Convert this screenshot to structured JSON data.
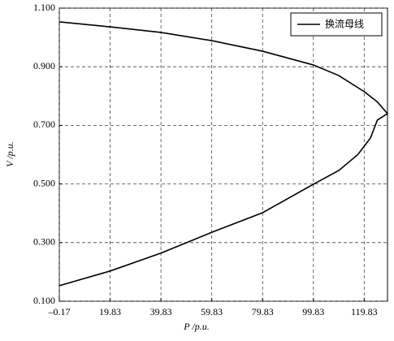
{
  "chart_data": {
    "type": "line",
    "x_label": "P /p.u.",
    "y_label": "V /p.u.",
    "x": [
      -0.17,
      19.83,
      39.83,
      59.83,
      79.83,
      99.83,
      109.83,
      119.83,
      125,
      129,
      125,
      122.3,
      117.3,
      109.83,
      99.83,
      79.83,
      59.83,
      39.83,
      19.83,
      -0.17
    ],
    "series": [
      {
        "name": "换流母线",
        "color": "#000000",
        "values": [
          1.053,
          1.036,
          1.017,
          0.989,
          0.953,
          0.906,
          0.87,
          0.815,
          0.78,
          0.74,
          0.718,
          0.657,
          0.6,
          0.546,
          0.499,
          0.402,
          0.335,
          0.264,
          0.203,
          0.153
        ]
      }
    ],
    "xlim": [
      -0.17,
      129
    ],
    "xticks": [
      {
        "value": -0.17,
        "label": "–0.17"
      },
      19.83,
      39.83,
      59.83,
      79.83,
      99.83,
      119.83
    ],
    "ylim": [
      0.1,
      1.1
    ],
    "yticks": [
      {
        "value": 0.1,
        "label": "0.100"
      },
      {
        "value": 0.3,
        "label": "0.300"
      },
      {
        "value": 0.5,
        "label": "0.500"
      },
      {
        "value": 0.7,
        "label": "0.700"
      },
      {
        "value": 0.9,
        "label": "0.900"
      },
      {
        "value": 1.1,
        "label": "1.100"
      }
    ],
    "grid": true,
    "legend": "upper right"
  }
}
